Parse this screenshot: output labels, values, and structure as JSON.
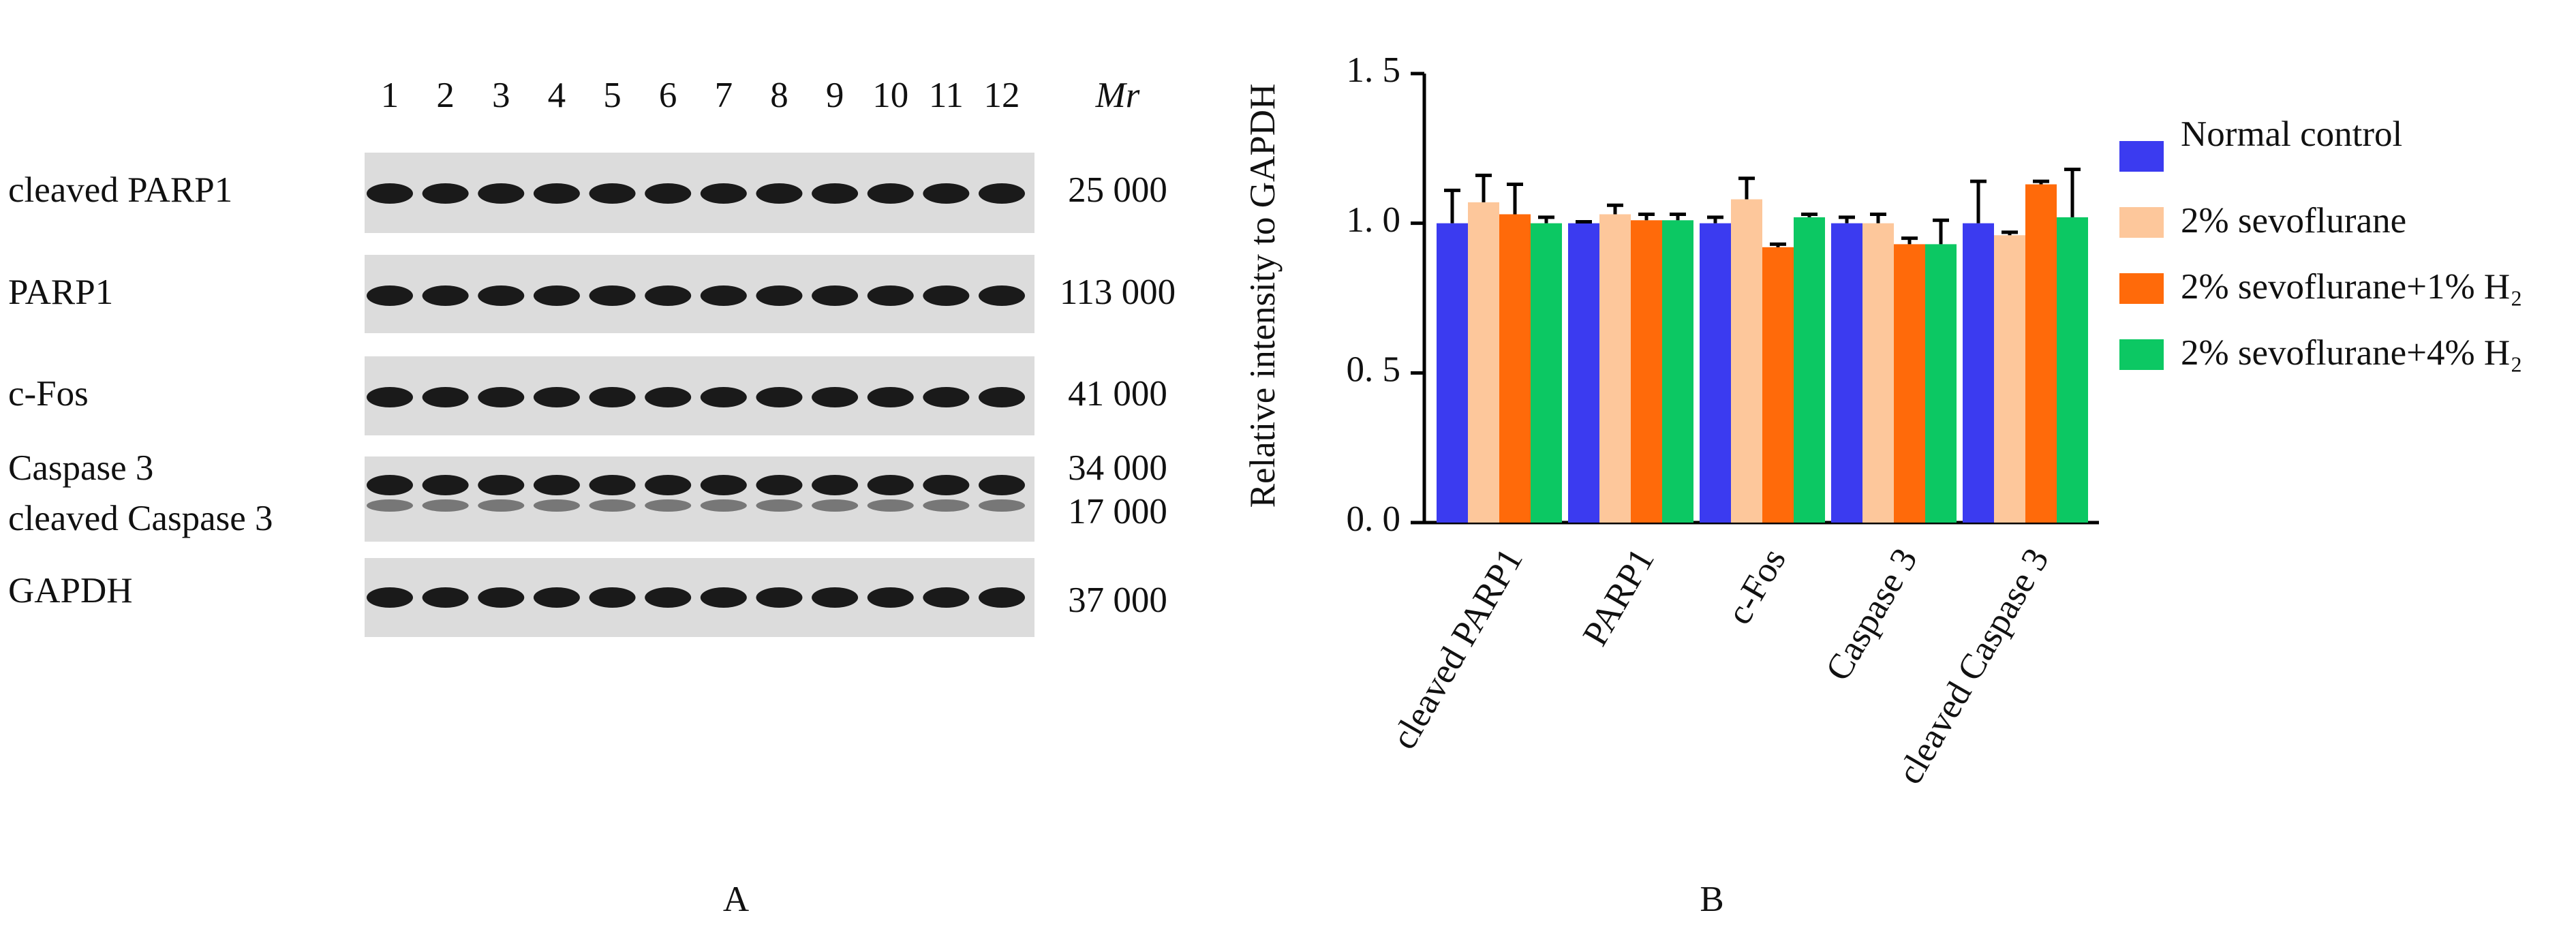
{
  "blot": {
    "lanes": [
      "1",
      "2",
      "3",
      "4",
      "5",
      "6",
      "7",
      "8",
      "9",
      "10",
      "11",
      "12"
    ],
    "mr_header": "Mr",
    "rows": [
      {
        "label": "cleaved PARP1",
        "mr": "25 000"
      },
      {
        "label": "PARP1",
        "mr": "113 000"
      },
      {
        "label": "c-Fos",
        "mr": "41 000"
      },
      {
        "label": "Caspase 3",
        "mr": "34 000"
      },
      {
        "label": "cleaved Caspase 3",
        "mr": "17 000"
      },
      {
        "label": "GAPDH",
        "mr": "37 000"
      }
    ],
    "panel_label": "A"
  },
  "chart_data": {
    "type": "bar",
    "panel_label": "B",
    "y_label": "Relative intensity to GAPDH",
    "categories": [
      "cleaved PARP1",
      "PARP1",
      "c-Fos",
      "Caspase 3",
      "cleaved Caspase 3"
    ],
    "series": [
      {
        "name": "Normal control",
        "color": "#3b3bf0",
        "values": [
          1.0,
          1.0,
          1.0,
          1.0,
          1.0
        ],
        "errors": [
          0.11,
          0.005,
          0.02,
          0.02,
          0.14
        ]
      },
      {
        "name": "2% sevoflurane",
        "color": "#fdc79b",
        "values": [
          1.07,
          1.03,
          1.08,
          1.0,
          0.96
        ],
        "errors": [
          0.09,
          0.03,
          0.07,
          0.03,
          0.01
        ]
      },
      {
        "name": "2% sevoflurane+1% H₂",
        "color": "#ff6a0a",
        "values": [
          1.03,
          1.01,
          0.92,
          0.93,
          1.13
        ],
        "errors": [
          0.1,
          0.02,
          0.01,
          0.02,
          0.01
        ]
      },
      {
        "name": "2% sevoflurane+4% H₂",
        "color": "#0cc863",
        "values": [
          1.0,
          1.01,
          1.02,
          0.93,
          1.02
        ],
        "errors": [
          0.02,
          0.02,
          0.01,
          0.08,
          0.16
        ]
      }
    ],
    "ylim": [
      0,
      1.5
    ],
    "yticks": [
      {
        "value": 0,
        "label": "0. 0"
      },
      {
        "value": 0.5,
        "label": "0. 5"
      },
      {
        "value": 1,
        "label": "1. 0"
      },
      {
        "value": 1.5,
        "label": "1. 5"
      }
    ],
    "legend": "right"
  }
}
